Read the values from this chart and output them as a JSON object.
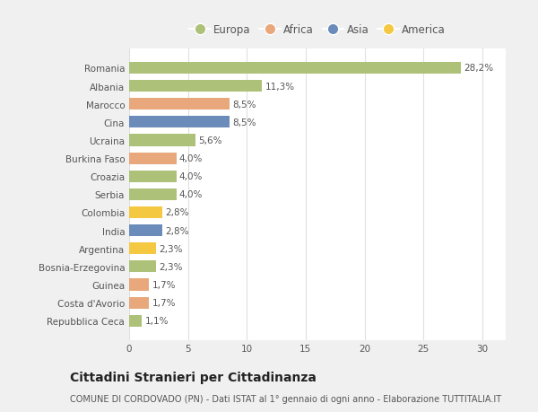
{
  "categories": [
    "Romania",
    "Albania",
    "Marocco",
    "Cina",
    "Ucraina",
    "Burkina Faso",
    "Croazia",
    "Serbia",
    "Colombia",
    "India",
    "Argentina",
    "Bosnia-Erzegovina",
    "Guinea",
    "Costa d'Avorio",
    "Repubblica Ceca"
  ],
  "values": [
    28.2,
    11.3,
    8.5,
    8.5,
    5.6,
    4.0,
    4.0,
    4.0,
    2.8,
    2.8,
    2.3,
    2.3,
    1.7,
    1.7,
    1.1
  ],
  "labels": [
    "28,2%",
    "11,3%",
    "8,5%",
    "8,5%",
    "5,6%",
    "4,0%",
    "4,0%",
    "4,0%",
    "2,8%",
    "2,8%",
    "2,3%",
    "2,3%",
    "1,7%",
    "1,7%",
    "1,1%"
  ],
  "continent": [
    "Europa",
    "Europa",
    "Africa",
    "Asia",
    "Europa",
    "Africa",
    "Europa",
    "Europa",
    "America",
    "Asia",
    "America",
    "Europa",
    "Africa",
    "Africa",
    "Europa"
  ],
  "colors": {
    "Europa": "#adc178",
    "Africa": "#e8a87c",
    "Asia": "#6b8cba",
    "America": "#f5c842"
  },
  "legend_order": [
    "Europa",
    "Africa",
    "Asia",
    "America"
  ],
  "xlim": [
    0,
    32
  ],
  "xticks": [
    0,
    5,
    10,
    15,
    20,
    25,
    30
  ],
  "title": "Cittadini Stranieri per Cittadinanza",
  "subtitle": "COMUNE DI CORDOVADO (PN) - Dati ISTAT al 1° gennaio di ogni anno - Elaborazione TUTTITALIA.IT",
  "bg_color": "#f0f0f0",
  "plot_bg_color": "#ffffff",
  "grid_color": "#e0e0e0",
  "bar_height": 0.65,
  "label_fontsize": 7.5,
  "tick_fontsize": 7.5,
  "title_fontsize": 10,
  "subtitle_fontsize": 7.0
}
